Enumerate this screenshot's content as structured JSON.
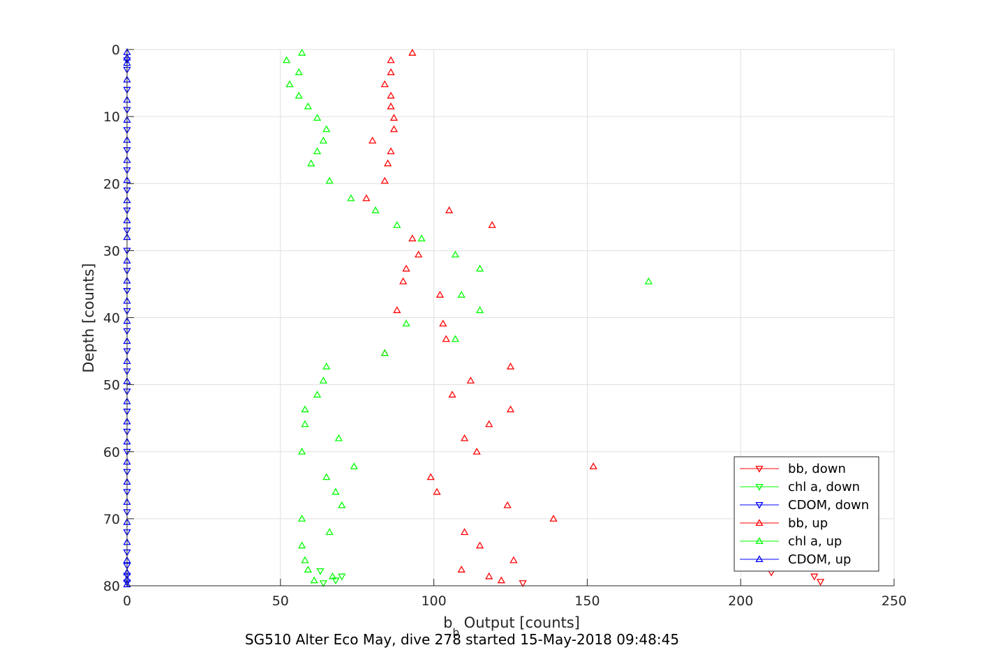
{
  "caption": "SG510 Alter Eco May, dive 278 started 15-May-2018 09:48:45",
  "chart_data": {
    "type": "scatter",
    "xlabel_main": "b",
    "xlabel_sub": "b",
    "xlabel_rest": " Output [counts]",
    "ylabel": "Depth [counts]",
    "xlim": [
      0,
      250
    ],
    "ylim": [
      0,
      80
    ],
    "y_reversed": true,
    "grid": true,
    "legend_position": "bottom-right",
    "xticks": [
      0,
      50,
      100,
      150,
      200,
      250
    ],
    "xtick_labels": [
      "0",
      "50",
      "100",
      "150",
      "200",
      "250"
    ],
    "yticks": [
      0,
      10,
      20,
      30,
      40,
      50,
      60,
      70,
      80
    ],
    "ytick_labels": [
      "0",
      "10",
      "20",
      "30",
      "40",
      "50",
      "60",
      "70",
      "80"
    ],
    "series": [
      {
        "name": "bb, down",
        "color": "#ff0000",
        "marker": "triangle-down",
        "points": [
          [
            210,
            78
          ],
          [
            224,
            78.6
          ],
          [
            226,
            79.4
          ],
          [
            129,
            79.6
          ]
        ]
      },
      {
        "name": "chl a, down",
        "color": "#00ff00",
        "marker": "triangle-down",
        "points": [
          [
            63,
            77.8
          ],
          [
            70,
            78.6
          ],
          [
            68,
            79.2
          ],
          [
            64,
            79.6
          ]
        ]
      },
      {
        "name": "CDOM, down",
        "color": "#0000ff",
        "marker": "triangle-down",
        "points": [
          [
            0,
            1.6
          ],
          [
            0,
            3
          ],
          [
            0,
            6
          ],
          [
            0,
            9
          ],
          [
            0,
            12
          ],
          [
            0,
            15
          ],
          [
            0,
            18
          ],
          [
            0,
            21
          ],
          [
            0,
            24
          ],
          [
            0,
            27
          ],
          [
            0,
            30
          ],
          [
            0,
            33
          ],
          [
            0,
            36
          ],
          [
            0,
            39
          ],
          [
            0,
            42
          ],
          [
            0,
            45
          ],
          [
            0,
            48
          ],
          [
            0,
            51
          ],
          [
            0,
            54
          ],
          [
            0,
            57
          ],
          [
            0,
            60
          ],
          [
            0,
            63
          ],
          [
            0,
            66
          ],
          [
            0,
            69
          ],
          [
            0,
            72
          ],
          [
            0,
            75
          ],
          [
            0,
            77
          ],
          [
            0,
            78.5
          ],
          [
            0,
            79.5
          ]
        ]
      },
      {
        "name": "bb, up",
        "color": "#ff0000",
        "marker": "triangle-up",
        "points": [
          [
            93,
            0.5
          ],
          [
            86,
            1.6
          ],
          [
            86,
            3.4
          ],
          [
            84,
            5.2
          ],
          [
            86,
            6.9
          ],
          [
            86,
            8.5
          ],
          [
            87,
            10.2
          ],
          [
            87,
            11.9
          ],
          [
            80,
            13.6
          ],
          [
            86,
            15.2
          ],
          [
            85,
            17
          ],
          [
            84,
            19.6
          ],
          [
            78,
            22.2
          ],
          [
            105,
            24
          ],
          [
            119,
            26.2
          ],
          [
            93,
            28.2
          ],
          [
            95,
            30.6
          ],
          [
            91,
            32.7
          ],
          [
            90,
            34.6
          ],
          [
            102,
            36.6
          ],
          [
            88,
            38.9
          ],
          [
            103,
            40.9
          ],
          [
            104,
            43.2
          ],
          [
            84,
            45.3
          ],
          [
            125,
            47.3
          ],
          [
            112,
            49.4
          ],
          [
            106,
            51.5
          ],
          [
            125,
            53.7
          ],
          [
            118,
            55.9
          ],
          [
            110,
            58
          ],
          [
            114,
            60
          ],
          [
            152,
            62.2
          ],
          [
            99,
            63.8
          ],
          [
            101,
            66
          ],
          [
            124,
            68
          ],
          [
            139,
            70
          ],
          [
            110,
            72
          ],
          [
            115,
            74
          ],
          [
            126,
            76.2
          ],
          [
            109,
            77.6
          ],
          [
            118,
            78.6
          ],
          [
            122,
            79.2
          ]
        ]
      },
      {
        "name": "chl a, up",
        "color": "#00ff00",
        "marker": "triangle-up",
        "points": [
          [
            57,
            0.5
          ],
          [
            52,
            1.6
          ],
          [
            56,
            3.4
          ],
          [
            53,
            5.2
          ],
          [
            56,
            6.9
          ],
          [
            59,
            8.5
          ],
          [
            62,
            10.2
          ],
          [
            65,
            11.9
          ],
          [
            64,
            13.6
          ],
          [
            62,
            15.2
          ],
          [
            60,
            17
          ],
          [
            66,
            19.6
          ],
          [
            73,
            22.2
          ],
          [
            81,
            24
          ],
          [
            88,
            26.2
          ],
          [
            96,
            28.2
          ],
          [
            107,
            30.6
          ],
          [
            115,
            32.7
          ],
          [
            170,
            34.6
          ],
          [
            109,
            36.6
          ],
          [
            115,
            38.9
          ],
          [
            91,
            40.9
          ],
          [
            107,
            43.2
          ],
          [
            84,
            45.3
          ],
          [
            65,
            47.3
          ],
          [
            64,
            49.4
          ],
          [
            62,
            51.5
          ],
          [
            58,
            53.7
          ],
          [
            58,
            55.9
          ],
          [
            69,
            58
          ],
          [
            57,
            60
          ],
          [
            74,
            62.2
          ],
          [
            65,
            63.8
          ],
          [
            68,
            66
          ],
          [
            70,
            68
          ],
          [
            57,
            70
          ],
          [
            66,
            72
          ],
          [
            57,
            74
          ],
          [
            58,
            76.2
          ],
          [
            59,
            77.6
          ],
          [
            67,
            78.6
          ],
          [
            61,
            79.2
          ]
        ]
      },
      {
        "name": "CDOM, up",
        "color": "#0000ff",
        "marker": "triangle-up",
        "points": [
          [
            0,
            0.4
          ],
          [
            0,
            1.2
          ],
          [
            0,
            2
          ],
          [
            0,
            4.5
          ],
          [
            0,
            7.5
          ],
          [
            0,
            10.5
          ],
          [
            0,
            13.5
          ],
          [
            0,
            16.5
          ],
          [
            0,
            19.5
          ],
          [
            0,
            22.5
          ],
          [
            0,
            25.5
          ],
          [
            0,
            28
          ],
          [
            0,
            31.5
          ],
          [
            0,
            34.5
          ],
          [
            0,
            37.5
          ],
          [
            0,
            40.5
          ],
          [
            0,
            43.5
          ],
          [
            0,
            46.5
          ],
          [
            0,
            49.5
          ],
          [
            0,
            52.5
          ],
          [
            0,
            55.5
          ],
          [
            0,
            58.5
          ],
          [
            0,
            61.5
          ],
          [
            0,
            64.5
          ],
          [
            0,
            67.5
          ],
          [
            0,
            70.5
          ],
          [
            0,
            73.5
          ],
          [
            0,
            76.2
          ],
          [
            0,
            78
          ],
          [
            0,
            79
          ],
          [
            0,
            79.8
          ]
        ]
      }
    ]
  }
}
